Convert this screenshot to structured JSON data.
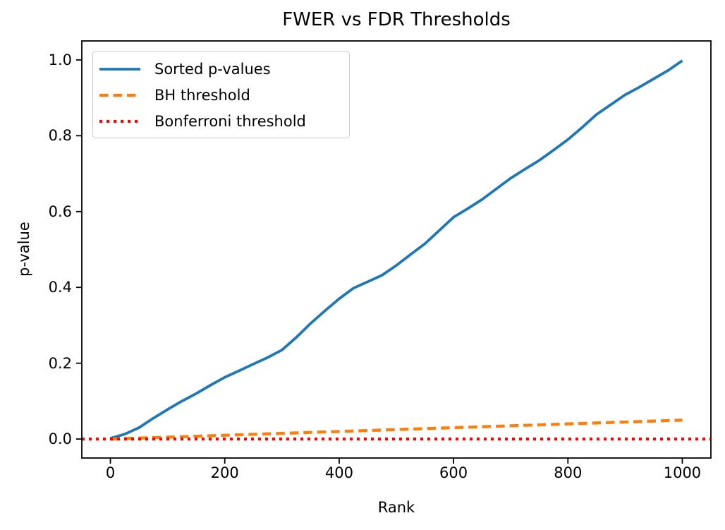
{
  "figure": {
    "background": "#ffffff",
    "text_color": "#000000",
    "spine_color": "#000000"
  },
  "chart_data": {
    "type": "line",
    "title": "FWER vs FDR Thresholds",
    "xlabel": "Rank",
    "ylabel": "p-value",
    "xlim": [
      -50,
      1050
    ],
    "ylim": [
      -0.05,
      1.05
    ],
    "grid": false,
    "x_ticks": [
      0,
      200,
      400,
      600,
      800,
      1000
    ],
    "x_tick_labels": [
      "0",
      "200",
      "400",
      "600",
      "800",
      "1000"
    ],
    "y_ticks": [
      0.0,
      0.2,
      0.4,
      0.6,
      0.8,
      1.0
    ],
    "y_tick_labels": [
      "0.0",
      "0.2",
      "0.4",
      "0.6",
      "0.8",
      "1.0"
    ],
    "legend": {
      "position": "upper left",
      "border_color": "#cccccc"
    },
    "series": [
      {
        "name": "Sorted p-values",
        "color": "#1f77b4",
        "style": "solid",
        "points": [
          [
            0,
            0.002
          ],
          [
            25,
            0.013
          ],
          [
            50,
            0.03
          ],
          [
            75,
            0.055
          ],
          [
            100,
            0.078
          ],
          [
            125,
            0.1
          ],
          [
            150,
            0.12
          ],
          [
            175,
            0.142
          ],
          [
            200,
            0.163
          ],
          [
            225,
            0.18
          ],
          [
            250,
            0.198
          ],
          [
            275,
            0.215
          ],
          [
            300,
            0.235
          ],
          [
            325,
            0.268
          ],
          [
            350,
            0.305
          ],
          [
            375,
            0.338
          ],
          [
            400,
            0.37
          ],
          [
            425,
            0.398
          ],
          [
            450,
            0.415
          ],
          [
            475,
            0.432
          ],
          [
            500,
            0.458
          ],
          [
            525,
            0.487
          ],
          [
            550,
            0.515
          ],
          [
            575,
            0.55
          ],
          [
            600,
            0.585
          ],
          [
            625,
            0.608
          ],
          [
            650,
            0.632
          ],
          [
            675,
            0.66
          ],
          [
            700,
            0.688
          ],
          [
            725,
            0.712
          ],
          [
            750,
            0.735
          ],
          [
            775,
            0.762
          ],
          [
            800,
            0.79
          ],
          [
            825,
            0.822
          ],
          [
            850,
            0.856
          ],
          [
            875,
            0.882
          ],
          [
            900,
            0.908
          ],
          [
            925,
            0.928
          ],
          [
            950,
            0.95
          ],
          [
            975,
            0.972
          ],
          [
            1000,
            0.998
          ]
        ]
      },
      {
        "name": "BH threshold",
        "color": "#ff7f0e",
        "style": "dashed",
        "points": [
          [
            1,
            5e-05
          ],
          [
            1000,
            0.05
          ]
        ]
      },
      {
        "name": "Bonferroni threshold",
        "color": "#ff0000",
        "style": "dotted",
        "points": [
          [
            -50,
            5e-05
          ],
          [
            1050,
            5e-05
          ]
        ]
      }
    ]
  }
}
